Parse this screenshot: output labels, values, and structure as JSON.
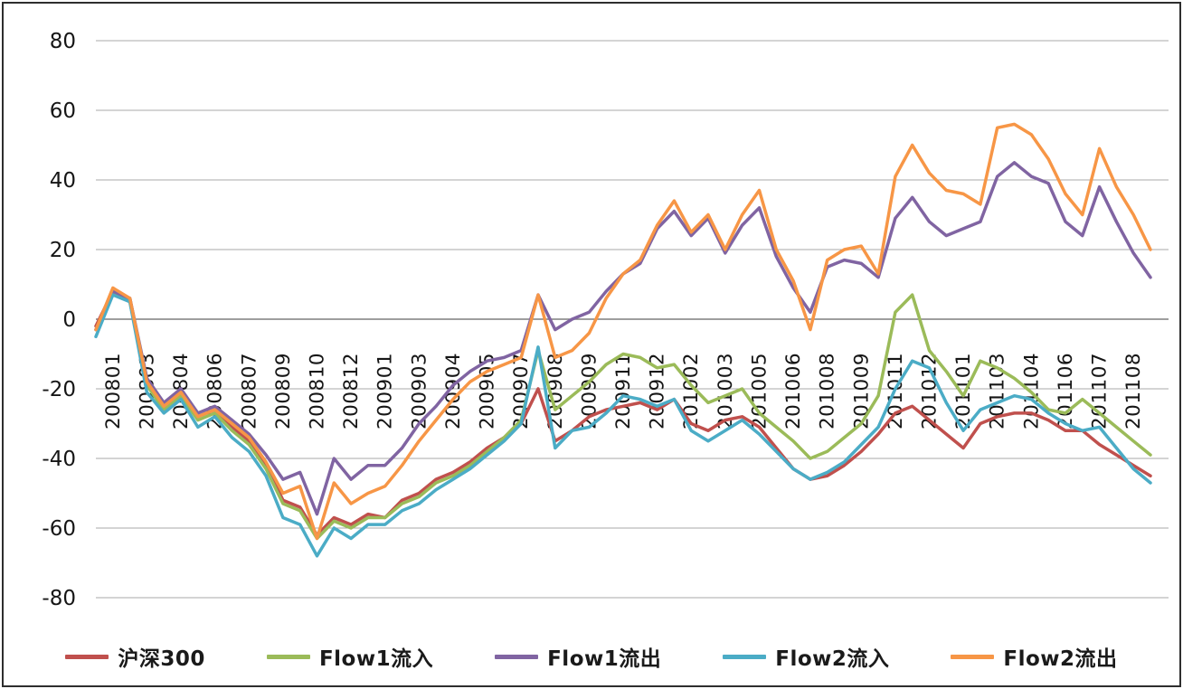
{
  "chart_data": {
    "type": "line",
    "title": "",
    "legend_position": "bottom",
    "grid": {
      "horizontal": true,
      "vertical": false
    },
    "y_axis": {
      "min": -80,
      "max": 80,
      "tick_interval": 20,
      "ticks": [
        80,
        60,
        40,
        20,
        0,
        -20,
        -40,
        -60,
        -80
      ]
    },
    "x_axis": {
      "label_rotation_degrees": -90,
      "labels": [
        "200801",
        "200803",
        "200804",
        "200806",
        "200807",
        "200809",
        "200810",
        "200812",
        "200901",
        "200903",
        "200904",
        "200905",
        "200907",
        "200908",
        "200909",
        "200911",
        "200912",
        "201002",
        "201003",
        "201005",
        "201006",
        "201008",
        "201009",
        "201011",
        "201012",
        "201101",
        "201103",
        "201104",
        "201106",
        "201107",
        "201108"
      ]
    },
    "points_per_label_interval": 2,
    "series": [
      {
        "name": "沪深300",
        "color": "#C0504D",
        "values": [
          -2,
          8,
          6,
          -18,
          -25,
          -21,
          -28,
          -26,
          -31,
          -35,
          -42,
          -52,
          -54,
          -62,
          -57,
          -59,
          -56,
          -57,
          -52,
          -50,
          -46,
          -44,
          -41,
          -37,
          -34,
          -30,
          -20,
          -35,
          -32,
          -28,
          -26,
          -25,
          -24,
          -26,
          -23,
          -30,
          -32,
          -29,
          -28,
          -31,
          -37,
          -43,
          -46,
          -45,
          -42,
          -38,
          -33,
          -27,
          -25,
          -29,
          -33,
          -37,
          -30,
          -28,
          -27,
          -27,
          -29,
          -32,
          -32,
          -36,
          -39,
          -42,
          -45
        ]
      },
      {
        "name": "Flow1流入",
        "color": "#9BBB59",
        "values": [
          -3,
          8,
          5,
          -19,
          -26,
          -22,
          -29,
          -27,
          -32,
          -36,
          -43,
          -53,
          -55,
          -63,
          -58,
          -60,
          -57,
          -57,
          -53,
          -51,
          -47,
          -45,
          -42,
          -38,
          -34,
          -29,
          -9,
          -26,
          -22,
          -18,
          -13,
          -10,
          -11,
          -14,
          -13,
          -19,
          -24,
          -22,
          -20,
          -27,
          -31,
          -35,
          -40,
          -38,
          -34,
          -30,
          -22,
          2,
          7,
          -9,
          -15,
          -22,
          -12,
          -14,
          -17,
          -21,
          -26,
          -27,
          -23,
          -27,
          -31,
          -35,
          -39
        ]
      },
      {
        "name": "Flow1流出",
        "color": "#8064A2",
        "values": [
          -3,
          8,
          6,
          -17,
          -24,
          -20,
          -27,
          -25,
          -29,
          -33,
          -39,
          -46,
          -44,
          -56,
          -40,
          -46,
          -42,
          -42,
          -37,
          -30,
          -25,
          -19,
          -15,
          -12,
          -11,
          -9,
          7,
          -3,
          0,
          2,
          8,
          13,
          16,
          26,
          31,
          24,
          29,
          19,
          27,
          32,
          18,
          9,
          2,
          15,
          17,
          16,
          12,
          29,
          35,
          28,
          24,
          26,
          28,
          41,
          45,
          41,
          39,
          28,
          24,
          38,
          28,
          19,
          12
        ]
      },
      {
        "name": "Flow2流入",
        "color": "#4BACC6",
        "values": [
          -5,
          7,
          5,
          -21,
          -27,
          -23,
          -31,
          -28,
          -34,
          -38,
          -45,
          -57,
          -59,
          -68,
          -60,
          -63,
          -59,
          -59,
          -55,
          -53,
          -49,
          -46,
          -43,
          -39,
          -35,
          -30,
          -8,
          -37,
          -32,
          -31,
          -27,
          -22,
          -23,
          -25,
          -23,
          -32,
          -35,
          -32,
          -29,
          -33,
          -38,
          -43,
          -46,
          -44,
          -41,
          -36,
          -31,
          -20,
          -12,
          -14,
          -24,
          -32,
          -26,
          -24,
          -22,
          -23,
          -27,
          -30,
          -32,
          -31,
          -37,
          -43,
          -47
        ]
      },
      {
        "name": "Flow2流出",
        "color": "#F79646",
        "values": [
          -3,
          9,
          6,
          -18,
          -25,
          -21,
          -28,
          -26,
          -30,
          -34,
          -41,
          -50,
          -48,
          -63,
          -47,
          -53,
          -50,
          -48,
          -42,
          -35,
          -29,
          -23,
          -18,
          -15,
          -13,
          -11,
          7,
          -11,
          -9,
          -4,
          6,
          13,
          17,
          27,
          34,
          25,
          30,
          20,
          30,
          37,
          20,
          11,
          -3,
          17,
          20,
          21,
          13,
          41,
          50,
          42,
          37,
          36,
          33,
          55,
          56,
          53,
          46,
          36,
          30,
          49,
          38,
          30,
          20
        ]
      }
    ]
  },
  "style": {
    "background": "#FFFFFF",
    "border_color": "#2E2E2E",
    "gridline_color": "#A9A9A9",
    "zero_line_color": "#7F7F7F",
    "axis_text_color": "#161616",
    "line_width": 3.5
  }
}
